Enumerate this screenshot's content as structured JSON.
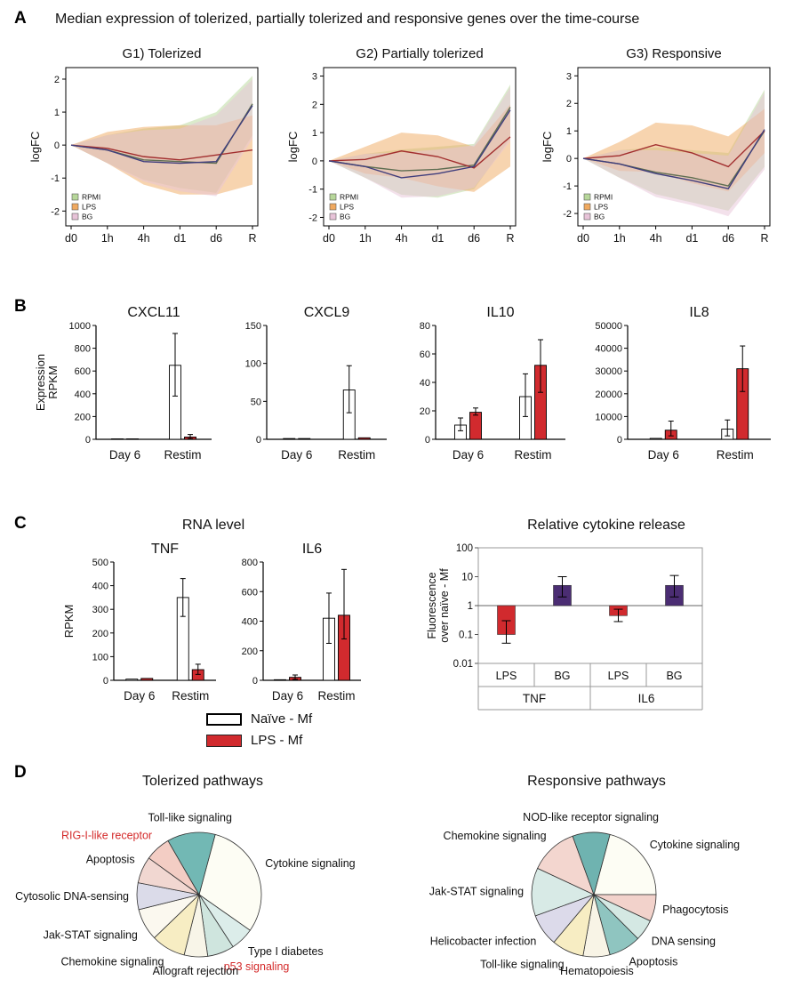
{
  "panels": {
    "A": {
      "label": "A",
      "title": "Median expression of tolerized, partially tolerized and responsive genes  over the time-course"
    },
    "B": {
      "label": "B"
    },
    "C": {
      "label": "C",
      "rna_title": "RNA level",
      "legend": [
        {
          "label": "Naïve - Mf",
          "color": "#ffffff"
        },
        {
          "label": "LPS - Mf",
          "color": "#d12a2e"
        }
      ]
    },
    "D": {
      "label": "D"
    }
  },
  "chart_data": [
    {
      "id": "g1",
      "type": "area",
      "title": "G1) Tolerized",
      "ylabel": "logFC",
      "x": [
        "d0",
        "1h",
        "4h",
        "d1",
        "d6",
        "R"
      ],
      "ylim": [
        -2.45,
        2.35
      ],
      "yticks": [
        -2,
        -1,
        0,
        1,
        2
      ],
      "series": [
        {
          "name": "RPMI",
          "color": "#5f6e52",
          "band": "#b7d79a",
          "line": [
            0,
            -0.15,
            -0.45,
            -0.5,
            -0.55,
            1.25
          ],
          "upper": [
            0,
            0.3,
            0.5,
            0.6,
            1.0,
            2.1
          ],
          "lower": [
            0,
            -0.55,
            -1.05,
            -1.3,
            -1.45,
            0.3
          ]
        },
        {
          "name": "LPS",
          "color": "#a22f2f",
          "band": "#f0a95f",
          "line": [
            0,
            -0.1,
            -0.35,
            -0.45,
            -0.3,
            -0.15
          ],
          "upper": [
            0,
            0.4,
            0.55,
            0.6,
            0.6,
            0.9
          ],
          "lower": [
            0,
            -0.55,
            -1.2,
            -1.5,
            -1.5,
            -1.2
          ]
        },
        {
          "name": "BG",
          "color": "#3f3d7c",
          "band": "#e7c3d8",
          "line": [
            0,
            -0.15,
            -0.5,
            -0.55,
            -0.5,
            1.2
          ],
          "upper": [
            0,
            0.3,
            0.45,
            0.5,
            0.9,
            2.0
          ],
          "lower": [
            0,
            -0.55,
            -1.1,
            -1.4,
            -1.55,
            0.2
          ]
        }
      ]
    },
    {
      "id": "g2",
      "type": "area",
      "title": "G2) Partially tolerized",
      "ylabel": "logFC",
      "x": [
        "d0",
        "1h",
        "4h",
        "d1",
        "d6",
        "R"
      ],
      "ylim": [
        -2.3,
        3.3
      ],
      "yticks": [
        -2,
        -1,
        0,
        1,
        2,
        3
      ],
      "series": [
        {
          "name": "RPMI",
          "color": "#5f6e52",
          "band": "#b7d79a",
          "line": [
            0,
            -0.2,
            -0.35,
            -0.3,
            -0.15,
            1.9
          ],
          "upper": [
            0,
            0.25,
            0.4,
            0.5,
            0.6,
            2.7
          ],
          "lower": [
            0,
            -0.6,
            -1.2,
            -1.3,
            -1.0,
            0.8
          ]
        },
        {
          "name": "LPS",
          "color": "#a22f2f",
          "band": "#f0a95f",
          "line": [
            0,
            0.05,
            0.35,
            0.15,
            -0.25,
            0.85
          ],
          "upper": [
            0,
            0.5,
            1.0,
            0.9,
            0.5,
            2.0
          ],
          "lower": [
            0,
            -0.45,
            -0.6,
            -0.9,
            -1.1,
            -0.2
          ]
        },
        {
          "name": "BG",
          "color": "#3f3d7c",
          "band": "#e7c3d8",
          "line": [
            0,
            -0.2,
            -0.6,
            -0.45,
            -0.2,
            1.8
          ],
          "upper": [
            0,
            0.25,
            0.3,
            0.4,
            0.55,
            2.6
          ],
          "lower": [
            0,
            -0.6,
            -1.3,
            -1.25,
            -0.95,
            0.7
          ]
        }
      ]
    },
    {
      "id": "g3",
      "type": "area",
      "title": "G3) Responsive",
      "ylabel": "logFC",
      "x": [
        "d0",
        "1h",
        "4h",
        "d1",
        "d6",
        "R"
      ],
      "ylim": [
        -2.45,
        3.3
      ],
      "yticks": [
        -2,
        -1,
        0,
        1,
        2,
        3
      ],
      "series": [
        {
          "name": "RPMI",
          "color": "#5f6e52",
          "band": "#b7d79a",
          "line": [
            0,
            -0.2,
            -0.5,
            -0.7,
            -1.0,
            1.0
          ],
          "upper": [
            0,
            0.3,
            0.4,
            0.3,
            0.2,
            2.5
          ],
          "lower": [
            0,
            -0.7,
            -1.3,
            -1.6,
            -1.9,
            -0.3
          ]
        },
        {
          "name": "LPS",
          "color": "#a22f2f",
          "band": "#f0a95f",
          "line": [
            0,
            0.1,
            0.5,
            0.2,
            -0.3,
            1.0
          ],
          "upper": [
            0,
            0.6,
            1.3,
            1.2,
            0.8,
            1.8
          ],
          "lower": [
            0,
            -0.45,
            -0.5,
            -0.9,
            -1.2,
            0.2
          ]
        },
        {
          "name": "BG",
          "color": "#3f3d7c",
          "band": "#e7c3d8",
          "line": [
            0,
            -0.2,
            -0.55,
            -0.8,
            -1.1,
            1.05
          ],
          "upper": [
            0,
            0.3,
            0.3,
            0.2,
            0.1,
            2.4
          ],
          "lower": [
            0,
            -0.7,
            -1.4,
            -1.7,
            -2.1,
            -0.4
          ]
        }
      ]
    },
    {
      "id": "cxcl11",
      "type": "bar",
      "title": "CXCL11",
      "ml": 74,
      "ylabel_lines": [
        "Expression",
        "RPKM"
      ],
      "ylim": [
        0,
        1000
      ],
      "yticks": [
        0,
        200,
        400,
        600,
        800,
        1000
      ],
      "groups": [
        "Day 6",
        "Restim"
      ],
      "series": [
        {
          "name": "Naïve - Mf",
          "fill": "#ffffff",
          "values": [
            4,
            650
          ],
          "err_lo": [
            4,
            380
          ],
          "err_hi": [
            4,
            930
          ]
        },
        {
          "name": "LPS - Mf",
          "fill": "#d12a2e",
          "values": [
            4,
            20
          ],
          "err_lo": [
            4,
            6
          ],
          "err_hi": [
            4,
            42
          ]
        }
      ]
    },
    {
      "id": "cxcl9",
      "type": "bar",
      "title": "CXCL9",
      "ml": 42,
      "ylim": [
        0,
        150
      ],
      "yticks": [
        0,
        50,
        100,
        150
      ],
      "groups": [
        "Day 6",
        "Restim"
      ],
      "series": [
        {
          "name": "Naïve - Mf",
          "fill": "#ffffff",
          "values": [
            1,
            65
          ],
          "err_lo": [
            1,
            35
          ],
          "err_hi": [
            1,
            97
          ]
        },
        {
          "name": "LPS - Mf",
          "fill": "#d12a2e",
          "values": [
            1,
            2
          ],
          "err_lo": [
            1,
            2
          ],
          "err_hi": [
            1,
            2
          ]
        }
      ]
    },
    {
      "id": "il10",
      "type": "bar",
      "title": "IL10",
      "ml": 38,
      "ylim": [
        0,
        80
      ],
      "yticks": [
        0,
        20,
        40,
        60,
        80
      ],
      "groups": [
        "Day 6",
        "Restim"
      ],
      "series": [
        {
          "name": "Naïve - Mf",
          "fill": "#ffffff",
          "values": [
            10,
            30
          ],
          "err_lo": [
            6,
            16
          ],
          "err_hi": [
            15,
            46
          ]
        },
        {
          "name": "LPS - Mf",
          "fill": "#d12a2e",
          "values": [
            19,
            52
          ],
          "err_lo": [
            17,
            33
          ],
          "err_hi": [
            22,
            70
          ]
        }
      ]
    },
    {
      "id": "il8",
      "type": "bar",
      "title": "IL8",
      "ml": 56,
      "ylim": [
        0,
        50000
      ],
      "yticks": [
        0,
        10000,
        20000,
        30000,
        40000,
        50000
      ],
      "groups": [
        "Day 6",
        "Restim"
      ],
      "series": [
        {
          "name": "Naïve - Mf",
          "fill": "#ffffff",
          "values": [
            400,
            4500
          ],
          "err_lo": [
            400,
            1500
          ],
          "err_hi": [
            400,
            8500
          ]
        },
        {
          "name": "LPS - Mf",
          "fill": "#d12a2e",
          "values": [
            4000,
            31000
          ],
          "err_lo": [
            1500,
            21000
          ],
          "err_hi": [
            8000,
            41000
          ]
        }
      ]
    },
    {
      "id": "tnf",
      "type": "bar",
      "title": "TNF",
      "ml": 62,
      "ylabel_lines": [
        "RPKM"
      ],
      "ylim": [
        0,
        500
      ],
      "yticks": [
        0,
        100,
        200,
        300,
        400,
        500
      ],
      "groups": [
        "Day 6",
        "Restim"
      ],
      "series": [
        {
          "name": "Naïve - Mf",
          "fill": "#ffffff",
          "values": [
            5,
            350
          ],
          "err_lo": [
            5,
            270
          ],
          "err_hi": [
            5,
            430
          ]
        },
        {
          "name": "LPS - Mf",
          "fill": "#d12a2e",
          "values": [
            8,
            45
          ],
          "err_lo": [
            8,
            25
          ],
          "err_hi": [
            8,
            68
          ]
        }
      ]
    },
    {
      "id": "il6",
      "type": "bar",
      "title": "IL6",
      "ml": 44,
      "ylim": [
        0,
        800
      ],
      "yticks": [
        0,
        200,
        400,
        600,
        800
      ],
      "groups": [
        "Day 6",
        "Restim"
      ],
      "series": [
        {
          "name": "Naïve - Mf",
          "fill": "#ffffff",
          "values": [
            4,
            420
          ],
          "err_lo": [
            4,
            250
          ],
          "err_hi": [
            4,
            590
          ]
        },
        {
          "name": "LPS - Mf",
          "fill": "#d12a2e",
          "values": [
            20,
            440
          ],
          "err_lo": [
            6,
            280
          ],
          "err_hi": [
            36,
            750
          ]
        }
      ]
    },
    {
      "id": "release",
      "type": "bar-log",
      "title": "Relative cytokine release",
      "ylabel_lines": [
        "Fluorescence",
        "over naïve - Mf"
      ],
      "ylim": [
        0.01,
        100
      ],
      "yticks": [
        100,
        10,
        1,
        0.1,
        0.01
      ],
      "baseline": 1,
      "group_labels": [
        "TNF",
        "IL6"
      ],
      "bars": [
        {
          "cytokine": "TNF",
          "stimulus": "LPS",
          "value": 0.1,
          "err_lo": 0.05,
          "err_hi": 0.3,
          "fill": "#d12a2e"
        },
        {
          "cytokine": "TNF",
          "stimulus": "BG",
          "value": 5,
          "err_lo": 2,
          "err_hi": 10,
          "fill": "#4b2d73"
        },
        {
          "cytokine": "IL6",
          "stimulus": "LPS",
          "value": 0.45,
          "err_lo": 0.28,
          "err_hi": 0.75,
          "fill": "#d12a2e"
        },
        {
          "cytokine": "IL6",
          "stimulus": "BG",
          "value": 5,
          "err_lo": 2,
          "err_hi": 11,
          "fill": "#4b2d73"
        }
      ]
    },
    {
      "id": "pie_tolerized",
      "type": "pie",
      "title": "Tolerized pathways",
      "start_angle": -75,
      "slices": [
        {
          "label": "Cytokine signaling",
          "value": 110,
          "color": "#fdfdf4"
        },
        {
          "label": "Type I diabetes",
          "value": 22,
          "color": "#dcedea"
        },
        {
          "label": "p53 signaling",
          "value": 25,
          "color": "#cfe5de",
          "label_color": "#d42a2a"
        },
        {
          "label": "Allograft rejection",
          "value": 22,
          "color": "#f8f5e8"
        },
        {
          "label": "Chemokine signaling",
          "value": 32,
          "color": "#f7edc3"
        },
        {
          "label": "Jak-STAT signaling",
          "value": 30,
          "color": "#fbf8ef"
        },
        {
          "label": "Cytosolic DNA-sensing",
          "value": 25,
          "color": "#dbdbe9"
        },
        {
          "label": "Apoptosis",
          "value": 25,
          "color": "#f1d7d1"
        },
        {
          "label": "RIG-I-like receptor",
          "value": 24,
          "color": "#f3cdc4",
          "label_color": "#d42a2a"
        },
        {
          "label": "Toll-like signaling",
          "value": 45,
          "color": "#72b8b4"
        }
      ]
    },
    {
      "id": "pie_responsive",
      "type": "pie",
      "title": "Responsive pathways",
      "start_angle": -75,
      "slices": [
        {
          "label": "Cytokine signaling",
          "value": 75,
          "color": "#fdfdf4"
        },
        {
          "label": "Phagocytosis",
          "value": 25,
          "color": "#f2d2cb"
        },
        {
          "label": "DNA sensing",
          "value": 20,
          "color": "#d4e8e3"
        },
        {
          "label": "Apoptosis",
          "value": 30,
          "color": "#8fc5c0"
        },
        {
          "label": "Hematopoiesis",
          "value": 25,
          "color": "#f8f4e6"
        },
        {
          "label": "Toll-like signaling",
          "value": 30,
          "color": "#f7edc3"
        },
        {
          "label": "Helicobacter infection",
          "value": 30,
          "color": "#dcdaea"
        },
        {
          "label": "Jak-STAT signaling",
          "value": 45,
          "color": "#d8eae6"
        },
        {
          "label": "Chemokine signaling",
          "value": 45,
          "color": "#f3d6cf"
        },
        {
          "label": "NOD-like receptor signaling",
          "value": 35,
          "color": "#6fb3b0"
        }
      ]
    }
  ]
}
